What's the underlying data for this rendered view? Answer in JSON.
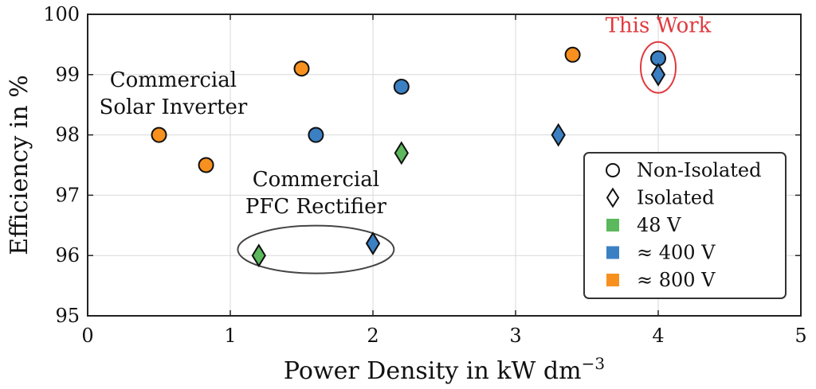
{
  "chart_data": {
    "type": "scatter",
    "xlabel": "Power Density in kW dm",
    "xlabel_superscript": "−3",
    "ylabel": "Efficiency in %",
    "xlim": [
      0,
      5
    ],
    "ylim": [
      95,
      100
    ],
    "xticks": [
      "0",
      "1",
      "2",
      "3",
      "4",
      "5"
    ],
    "yticks": [
      "95",
      "96",
      "97",
      "98",
      "99",
      "100"
    ],
    "grid": true,
    "legend_position": "lower-right",
    "colors": {
      "48V": "#5cb85c",
      "400V": "#3b80c3",
      "800V": "#f7901e",
      "highlight": "#e0393e"
    },
    "points": [
      {
        "x": 0.5,
        "y": 98.0,
        "shape": "circle",
        "voltage": "800V"
      },
      {
        "x": 0.83,
        "y": 97.5,
        "shape": "circle",
        "voltage": "800V"
      },
      {
        "x": 1.5,
        "y": 99.1,
        "shape": "circle",
        "voltage": "800V"
      },
      {
        "x": 3.4,
        "y": 99.33,
        "shape": "circle",
        "voltage": "800V"
      },
      {
        "x": 1.6,
        "y": 98.0,
        "shape": "circle",
        "voltage": "400V"
      },
      {
        "x": 2.2,
        "y": 98.8,
        "shape": "circle",
        "voltage": "400V"
      },
      {
        "x": 4.0,
        "y": 99.27,
        "shape": "circle",
        "voltage": "400V"
      },
      {
        "x": 1.2,
        "y": 96.0,
        "shape": "diamond",
        "voltage": "48V"
      },
      {
        "x": 2.2,
        "y": 97.7,
        "shape": "diamond",
        "voltage": "48V"
      },
      {
        "x": 2.0,
        "y": 96.2,
        "shape": "diamond",
        "voltage": "400V"
      },
      {
        "x": 3.3,
        "y": 98.0,
        "shape": "diamond",
        "voltage": "400V"
      },
      {
        "x": 4.0,
        "y": 99.0,
        "shape": "diamond",
        "voltage": "400V"
      }
    ],
    "annotations": {
      "this_work": "This Work",
      "solar_line1": "Commercial",
      "solar_line2": "Solar Inverter",
      "pfc_line1": "Commercial",
      "pfc_line2": "PFC Rectifier"
    },
    "legend": [
      {
        "label": "Non-Isolated",
        "marker": "circle-outline"
      },
      {
        "label": "Isolated",
        "marker": "diamond-outline"
      },
      {
        "label": "48 V",
        "marker": "square",
        "color": "#5cb85c"
      },
      {
        "label": "≈ 400 V",
        "marker": "square",
        "color": "#3b80c3"
      },
      {
        "label": "≈ 800 V",
        "marker": "square",
        "color": "#f7901e"
      }
    ]
  }
}
